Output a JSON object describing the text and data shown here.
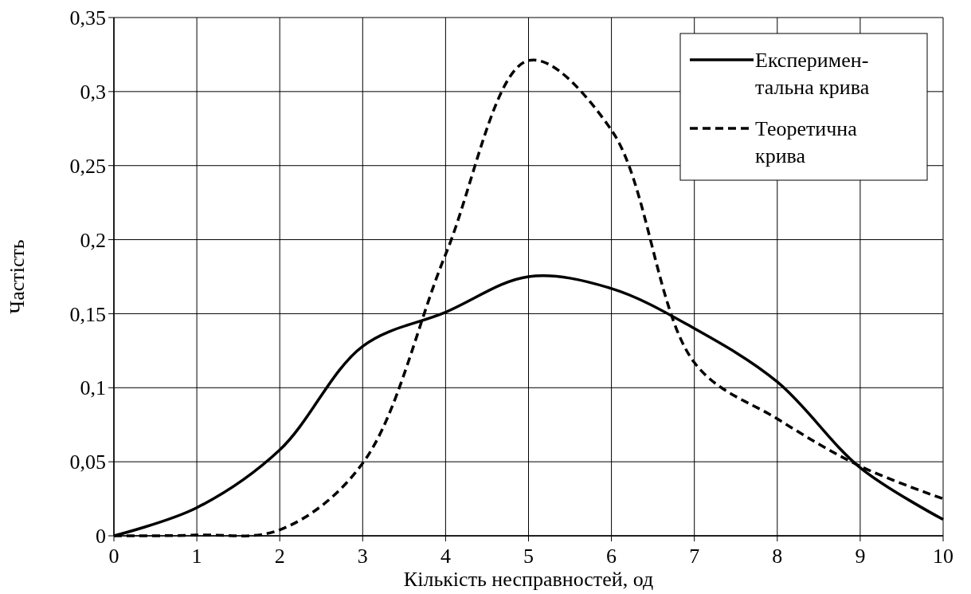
{
  "chart_data": {
    "type": "line",
    "xlabel": "Кількість несправностей, од",
    "ylabel": "Частість",
    "x": [
      0,
      1,
      2,
      3,
      4,
      5,
      6,
      7,
      8,
      9,
      10
    ],
    "series": [
      {
        "name": "Експеримен-тальна крива",
        "color": "#000000",
        "line_style": "solid",
        "values": [
          0,
          0.019,
          0.058,
          0.128,
          0.151,
          0.175,
          0.167,
          0.14,
          0.104,
          0.046,
          0.011
        ]
      },
      {
        "name": "Теоретична крива",
        "color": "#000000",
        "line_style": "dashed",
        "values": [
          0,
          0.0005,
          0.004,
          0.049,
          0.19,
          0.321,
          0.274,
          0.117,
          0.079,
          0.047,
          0.025
        ]
      }
    ],
    "xlim": [
      0,
      10
    ],
    "xticks": [
      0,
      1,
      2,
      3,
      4,
      5,
      6,
      7,
      8,
      9,
      10
    ],
    "ylim": [
      0,
      0.35
    ],
    "yticks": [
      {
        "value": 0,
        "label": "0"
      },
      {
        "value": 0.05,
        "label": "0,05"
      },
      {
        "value": 0.1,
        "label": "0,1"
      },
      {
        "value": 0.15,
        "label": "0,15"
      },
      {
        "value": 0.2,
        "label": "0,2"
      },
      {
        "value": 0.25,
        "label": "0,25"
      },
      {
        "value": 0.3,
        "label": "0,3"
      },
      {
        "value": 0.35,
        "label": "0,35"
      }
    ],
    "grid": true,
    "legend": "top right",
    "marker": "none"
  }
}
